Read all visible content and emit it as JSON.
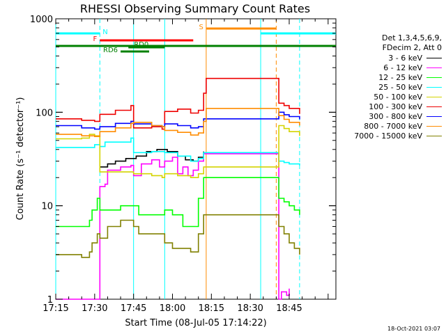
{
  "chart_data": {
    "type": "line",
    "title": "RHESSI Observing Summary Count Rates",
    "xlabel": "Start Time (08-Jul-05 17:14:22)",
    "ylabel": "Count Rate (s⁻¹ detector⁻¹)",
    "x_ticks": [
      "17:15",
      "17:30",
      "17:45",
      "18:00",
      "18:15",
      "18:30",
      "18:45"
    ],
    "x_range_min": [
      15,
      123
    ],
    "y_scale": "log",
    "ylim": [
      1,
      1000
    ],
    "y_ticks": [
      {
        "value": 1,
        "label": "1"
      },
      {
        "value": 10,
        "label": "10"
      },
      {
        "value": 100,
        "label": "100"
      },
      {
        "value": 1000,
        "label": "1000"
      }
    ],
    "legend_header": [
      "Det 1,3,4,5,6,9,",
      "FDecim 2, Att 0"
    ],
    "series": [
      {
        "name": "3 - 6 keV",
        "color": "#000000",
        "points": [
          [
            31,
            null
          ],
          [
            32,
            26
          ],
          [
            35,
            28
          ],
          [
            38,
            30
          ],
          [
            42,
            32
          ],
          [
            46,
            34
          ],
          [
            50,
            38
          ],
          [
            54,
            40
          ],
          [
            58,
            38
          ],
          [
            62,
            34
          ],
          [
            65,
            31
          ],
          [
            68,
            30
          ],
          [
            70,
            33
          ],
          [
            72,
            38
          ],
          [
            101,
            null
          ],
          [
            102,
            null
          ]
        ]
      },
      {
        "name": "6 - 12 keV",
        "color": "#ff00ff",
        "points": [
          [
            15,
            1
          ],
          [
            31,
            1
          ],
          [
            32,
            16
          ],
          [
            34,
            17
          ],
          [
            35,
            24
          ],
          [
            40,
            26
          ],
          [
            44,
            27
          ],
          [
            45,
            21
          ],
          [
            48,
            28
          ],
          [
            52,
            31
          ],
          [
            55,
            26
          ],
          [
            57,
            30
          ],
          [
            60,
            33
          ],
          [
            62,
            22
          ],
          [
            64,
            26
          ],
          [
            66,
            21
          ],
          [
            68,
            24
          ],
          [
            70,
            30
          ],
          [
            72,
            36
          ],
          [
            101,
            1
          ],
          [
            102,
            1.2
          ],
          [
            104,
            1.1
          ],
          [
            105,
            1.3
          ]
        ]
      },
      {
        "name": "12 - 25 keV",
        "color": "#00ff00",
        "points": [
          [
            15,
            6
          ],
          [
            25,
            6
          ],
          [
            28,
            7
          ],
          [
            29,
            9
          ],
          [
            31,
            12
          ],
          [
            32,
            9
          ],
          [
            34,
            9
          ],
          [
            40,
            10
          ],
          [
            45,
            10
          ],
          [
            47,
            8
          ],
          [
            52,
            8
          ],
          [
            57,
            9
          ],
          [
            60,
            8
          ],
          [
            64,
            6
          ],
          [
            67,
            6
          ],
          [
            70,
            12
          ],
          [
            72,
            20
          ],
          [
            101,
            12
          ],
          [
            103,
            11
          ],
          [
            105,
            10
          ],
          [
            107,
            9
          ],
          [
            109,
            8
          ]
        ]
      },
      {
        "name": "25 - 50 keV",
        "color": "#00ffff",
        "points": [
          [
            15,
            42
          ],
          [
            25,
            42
          ],
          [
            30,
            45
          ],
          [
            32,
            43
          ],
          [
            34,
            48
          ],
          [
            44,
            53
          ],
          [
            45,
            37
          ],
          [
            52,
            38
          ],
          [
            57,
            37
          ],
          [
            62,
            34
          ],
          [
            67,
            30
          ],
          [
            70,
            32
          ],
          [
            72,
            37
          ],
          [
            101,
            30
          ],
          [
            103,
            29
          ],
          [
            105,
            28
          ],
          [
            109,
            27
          ]
        ]
      },
      {
        "name": "50 - 100 keV",
        "color": "#d4d400",
        "points": [
          [
            15,
            52
          ],
          [
            25,
            53
          ],
          [
            28,
            58
          ],
          [
            30,
            56
          ],
          [
            32,
            23
          ],
          [
            40,
            23
          ],
          [
            44,
            23
          ],
          [
            45,
            22
          ],
          [
            52,
            21
          ],
          [
            56,
            20
          ],
          [
            57,
            22
          ],
          [
            62,
            21
          ],
          [
            67,
            20
          ],
          [
            70,
            22
          ],
          [
            72,
            26
          ],
          [
            101,
            72
          ],
          [
            103,
            67
          ],
          [
            105,
            62
          ],
          [
            109,
            56
          ]
        ]
      },
      {
        "name": "100 - 300 keV",
        "color": "#ee0000",
        "points": [
          [
            15,
            85
          ],
          [
            25,
            82
          ],
          [
            30,
            80
          ],
          [
            32,
            95
          ],
          [
            38,
            105
          ],
          [
            44,
            118
          ],
          [
            45,
            68
          ],
          [
            52,
            70
          ],
          [
            56,
            66
          ],
          [
            57,
            102
          ],
          [
            62,
            108
          ],
          [
            67,
            98
          ],
          [
            70,
            105
          ],
          [
            72,
            160
          ],
          [
            73,
            230
          ],
          [
            101,
            125
          ],
          [
            103,
            118
          ],
          [
            105,
            110
          ],
          [
            109,
            96
          ]
        ]
      },
      {
        "name": "300 - 800 keV",
        "color": "#0000ff",
        "points": [
          [
            15,
            72
          ],
          [
            25,
            68
          ],
          [
            30,
            66
          ],
          [
            32,
            70
          ],
          [
            38,
            76
          ],
          [
            44,
            80
          ],
          [
            45,
            75
          ],
          [
            52,
            72
          ],
          [
            56,
            70
          ],
          [
            57,
            75
          ],
          [
            62,
            72
          ],
          [
            67,
            68
          ],
          [
            70,
            70
          ],
          [
            72,
            85
          ],
          [
            101,
            100
          ],
          [
            103,
            94
          ],
          [
            105,
            90
          ],
          [
            109,
            84
          ]
        ]
      },
      {
        "name": "800 - 7000 keV",
        "color": "#ff8c00",
        "points": [
          [
            15,
            58
          ],
          [
            25,
            56
          ],
          [
            30,
            55
          ],
          [
            32,
            62
          ],
          [
            38,
            68
          ],
          [
            44,
            76
          ],
          [
            45,
            78
          ],
          [
            52,
            72
          ],
          [
            56,
            70
          ],
          [
            57,
            64
          ],
          [
            62,
            61
          ],
          [
            67,
            57
          ],
          [
            70,
            60
          ],
          [
            72,
            80
          ],
          [
            73,
            110
          ],
          [
            101,
            92
          ],
          [
            103,
            84
          ],
          [
            105,
            78
          ],
          [
            109,
            72
          ]
        ]
      },
      {
        "name": "7000 - 15000 keV",
        "color": "#808000",
        "points": [
          [
            15,
            3
          ],
          [
            25,
            2.8
          ],
          [
            28,
            3.2
          ],
          [
            29,
            4
          ],
          [
            31,
            5
          ],
          [
            32,
            4.5
          ],
          [
            35,
            6
          ],
          [
            40,
            7
          ],
          [
            45,
            6
          ],
          [
            47,
            5
          ],
          [
            52,
            5
          ],
          [
            57,
            4
          ],
          [
            60,
            3.5
          ],
          [
            64,
            3.5
          ],
          [
            67,
            3.2
          ],
          [
            70,
            5
          ],
          [
            72,
            8
          ],
          [
            101,
            6
          ],
          [
            103,
            5
          ],
          [
            105,
            4
          ],
          [
            107,
            3.5
          ],
          [
            109,
            3
          ]
        ]
      }
    ],
    "flags": [
      {
        "label": "N",
        "color": "#00ffff",
        "level_px_row": "top",
        "segments": [
          [
            15,
            32
          ],
          [
            94,
            123
          ]
        ]
      },
      {
        "label": "S",
        "color": "#ff8c00",
        "level_px_row": "second",
        "segments": [
          [
            73,
            100
          ]
        ]
      },
      {
        "label": "F",
        "color": "#ff0000",
        "level_px_row": "third",
        "segments": [
          [
            32,
            68
          ]
        ]
      },
      {
        "label": "",
        "color": "#008000",
        "level_px_row": "fourth",
        "segments": [
          [
            15,
            123
          ]
        ]
      },
      {
        "label": "RD0",
        "color": "#008000",
        "level_px_row": "fifth",
        "segments": [
          [
            43,
            57
          ]
        ]
      },
      {
        "label": "RD6",
        "color": "#008000",
        "level_px_row": "sixth",
        "segments": [
          [
            40,
            51
          ]
        ]
      }
    ],
    "vertical_markers": [
      {
        "x": 15,
        "color": "#00ffff",
        "style": "solid"
      },
      {
        "x": 32,
        "color": "#00ffff",
        "style": "dashed"
      },
      {
        "x": 45,
        "color": "#00ffff",
        "style": "solid"
      },
      {
        "x": 57,
        "color": "#00ffff",
        "style": "solid"
      },
      {
        "x": 73,
        "color": "#ff8c00",
        "style": "solid"
      },
      {
        "x": 94,
        "color": "#00ffff",
        "style": "solid"
      },
      {
        "x": 100,
        "color": "#ff8c00",
        "style": "dashed"
      },
      {
        "x": 109,
        "color": "#00ffff",
        "style": "dashed"
      }
    ],
    "grid": false,
    "legend_position": "right",
    "footer_date": "18-Oct-2021 03:07"
  }
}
